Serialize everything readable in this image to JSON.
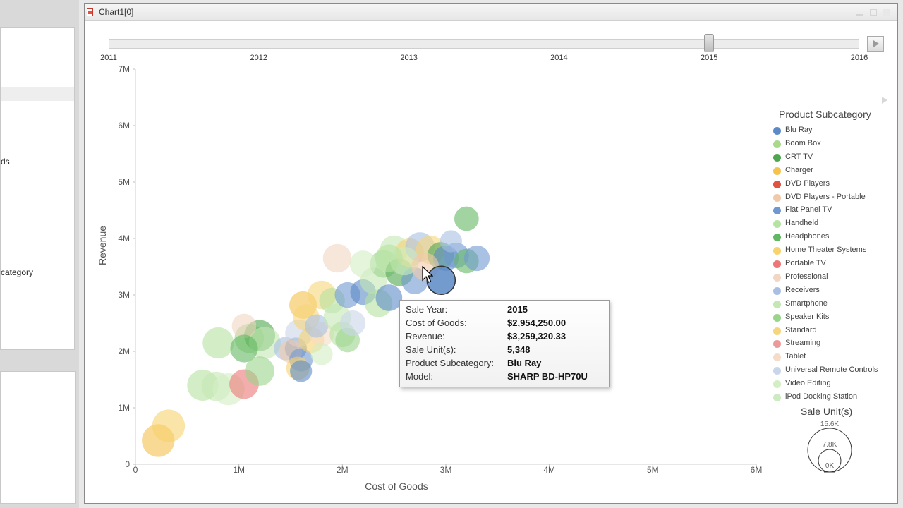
{
  "window": {
    "title": "Chart1[0]"
  },
  "left_panel": {
    "fragment_1": "ds",
    "fragment_2": "category"
  },
  "timeline": {
    "years": [
      "2011",
      "2012",
      "2013",
      "2014",
      "2015",
      "2016"
    ],
    "selected_year": 2015
  },
  "chart_data": {
    "type": "scatter",
    "xlabel": "Cost of Goods",
    "ylabel": "Revenue",
    "xlim": [
      0,
      6000000
    ],
    "ylim": [
      0,
      7000000
    ],
    "xticks": [
      "0",
      "1M",
      "2M",
      "3M",
      "4M",
      "5M",
      "6M"
    ],
    "yticks": [
      "0",
      "1M",
      "2M",
      "3M",
      "4M",
      "5M",
      "6M",
      "7M"
    ],
    "color_legend_title": "Product Subcategory",
    "size_legend_title": "Sale Unit(s)",
    "size_legend_values": [
      "15.6K",
      "7.8K",
      "0K"
    ],
    "categories": [
      {
        "name": "Blu Ray",
        "color": "#5b8ac6"
      },
      {
        "name": "Boom Box",
        "color": "#a9d98a"
      },
      {
        "name": "CRT TV",
        "color": "#4ea64e"
      },
      {
        "name": "Charger",
        "color": "#f5c24c"
      },
      {
        "name": "DVD Players",
        "color": "#e0533f"
      },
      {
        "name": "DVD Players - Portable",
        "color": "#f2c9a8"
      },
      {
        "name": "Flat Panel TV",
        "color": "#7097d0"
      },
      {
        "name": "Handheld",
        "color": "#b5e3a0"
      },
      {
        "name": "Headphones",
        "color": "#62b862"
      },
      {
        "name": "Home Theater Systems",
        "color": "#f7d26e"
      },
      {
        "name": "Portable TV",
        "color": "#ec7777"
      },
      {
        "name": "Professional",
        "color": "#f2d6c2"
      },
      {
        "name": "Receivers",
        "color": "#a8bfe3"
      },
      {
        "name": "Smartphone",
        "color": "#c4e8b4"
      },
      {
        "name": "Speaker Kits",
        "color": "#99d48b"
      },
      {
        "name": "Standard",
        "color": "#f7d57a"
      },
      {
        "name": "Streaming",
        "color": "#eb9a9a"
      },
      {
        "name": "Tablet",
        "color": "#f4dcc6"
      },
      {
        "name": "Universal Remote Controls",
        "color": "#c9d6ea"
      },
      {
        "name": "Video Editing",
        "color": "#d3eec5"
      },
      {
        "name": "iPod Docking Station",
        "color": "#cdebc0"
      }
    ],
    "points": [
      {
        "x": 220000,
        "y": 420000,
        "units": 8000,
        "cat": 3
      },
      {
        "x": 320000,
        "y": 680000,
        "units": 8000,
        "cat": 9
      },
      {
        "x": 650000,
        "y": 1400000,
        "units": 7000,
        "cat": 7
      },
      {
        "x": 780000,
        "y": 1380000,
        "units": 6000,
        "cat": 13
      },
      {
        "x": 900000,
        "y": 1330000,
        "units": 7500,
        "cat": 19
      },
      {
        "x": 1050000,
        "y": 1420000,
        "units": 6000,
        "cat": 10
      },
      {
        "x": 800000,
        "y": 2150000,
        "units": 7000,
        "cat": 7
      },
      {
        "x": 1100000,
        "y": 2230000,
        "units": 6000,
        "cat": 14
      },
      {
        "x": 1200000,
        "y": 2280000,
        "units": 7000,
        "cat": 2
      },
      {
        "x": 1250000,
        "y": 2150000,
        "units": 7500,
        "cat": 13
      },
      {
        "x": 1050000,
        "y": 2450000,
        "units": 3500,
        "cat": 11
      },
      {
        "x": 1050000,
        "y": 2050000,
        "units": 5000,
        "cat": 8
      },
      {
        "x": 1200000,
        "y": 1650000,
        "units": 6000,
        "cat": 14
      },
      {
        "x": 1450000,
        "y": 2050000,
        "units": 3000,
        "cat": 12
      },
      {
        "x": 1550000,
        "y": 2050000,
        "units": 2500,
        "cat": 0
      },
      {
        "x": 1580000,
        "y": 2320000,
        "units": 5000,
        "cat": 18
      },
      {
        "x": 1500000,
        "y": 2000000,
        "units": 3000,
        "cat": 5
      },
      {
        "x": 1600000,
        "y": 1850000,
        "units": 3000,
        "cat": 6
      },
      {
        "x": 1570000,
        "y": 1700000,
        "units": 3000,
        "cat": 9
      },
      {
        "x": 1620000,
        "y": 2820000,
        "units": 5000,
        "cat": 3
      },
      {
        "x": 1650000,
        "y": 2600000,
        "units": 4500,
        "cat": 15
      },
      {
        "x": 1700000,
        "y": 2200000,
        "units": 4000,
        "cat": 9
      },
      {
        "x": 1800000,
        "y": 2300000,
        "units": 3500,
        "cat": 17
      },
      {
        "x": 1750000,
        "y": 2450000,
        "units": 3000,
        "cat": 12
      },
      {
        "x": 1800000,
        "y": 3000000,
        "units": 5500,
        "cat": 15
      },
      {
        "x": 1900000,
        "y": 2900000,
        "units": 4000,
        "cat": 7
      },
      {
        "x": 1950000,
        "y": 2600000,
        "units": 5000,
        "cat": 13
      },
      {
        "x": 2000000,
        "y": 2300000,
        "units": 4000,
        "cat": 7
      },
      {
        "x": 2050000,
        "y": 2200000,
        "units": 3500,
        "cat": 14
      },
      {
        "x": 2100000,
        "y": 2500000,
        "units": 4000,
        "cat": 18
      },
      {
        "x": 1800000,
        "y": 1950000,
        "units": 2500,
        "cat": 19
      },
      {
        "x": 1600000,
        "y": 1650000,
        "units": 2500,
        "cat": 0
      },
      {
        "x": 1950000,
        "y": 3650000,
        "units": 5500,
        "cat": 11
      },
      {
        "x": 2050000,
        "y": 3000000,
        "units": 4000,
        "cat": 6
      },
      {
        "x": 2200000,
        "y": 3050000,
        "units": 4000,
        "cat": 0
      },
      {
        "x": 2300000,
        "y": 3250000,
        "units": 4500,
        "cat": 13
      },
      {
        "x": 2350000,
        "y": 2850000,
        "units": 5000,
        "cat": 7
      },
      {
        "x": 2450000,
        "y": 2950000,
        "units": 4500,
        "cat": 0
      },
      {
        "x": 2400000,
        "y": 3550000,
        "units": 5000,
        "cat": 14
      },
      {
        "x": 2500000,
        "y": 3800000,
        "units": 5500,
        "cat": 13
      },
      {
        "x": 2550000,
        "y": 3400000,
        "units": 5000,
        "cat": 2
      },
      {
        "x": 2650000,
        "y": 3750000,
        "units": 5500,
        "cat": 9
      },
      {
        "x": 2700000,
        "y": 3250000,
        "units": 4500,
        "cat": 6
      },
      {
        "x": 2750000,
        "y": 3850000,
        "units": 6000,
        "cat": 12
      },
      {
        "x": 2850000,
        "y": 3800000,
        "units": 5500,
        "cat": 15
      },
      {
        "x": 2950000,
        "y": 3700000,
        "units": 4500,
        "cat": 2
      },
      {
        "x": 3000000,
        "y": 3650000,
        "units": 4000,
        "cat": 0
      },
      {
        "x": 3100000,
        "y": 3700000,
        "units": 4000,
        "cat": 6
      },
      {
        "x": 3200000,
        "y": 3600000,
        "units": 3500,
        "cat": 8
      },
      {
        "x": 3300000,
        "y": 3650000,
        "units": 4000,
        "cat": 6
      },
      {
        "x": 3200000,
        "y": 4350000,
        "units": 3500,
        "cat": 8
      },
      {
        "x": 3050000,
        "y": 3950000,
        "units": 2500,
        "cat": 12
      },
      {
        "x": 2200000,
        "y": 3550000,
        "units": 4500,
        "cat": 19
      },
      {
        "x": 2600000,
        "y": 3600000,
        "units": 5500,
        "cat": 20
      },
      {
        "x": 2450000,
        "y": 3650000,
        "units": 5000,
        "cat": 7
      },
      {
        "x": 2800000,
        "y": 3500000,
        "units": 5000,
        "cat": 5
      },
      {
        "x": 2954250,
        "y": 3259320,
        "units": 5348,
        "cat": 0,
        "highlighted": true
      }
    ]
  },
  "tooltip": {
    "rows": [
      {
        "label": "Sale Year:",
        "value": "2015"
      },
      {
        "label": "Cost of Goods:",
        "value": "$2,954,250.00"
      },
      {
        "label": "Revenue:",
        "value": "$3,259,320.33"
      },
      {
        "label": "Sale Unit(s):",
        "value": "5,348"
      },
      {
        "label": "Product Subcategory:",
        "value": "Blu Ray"
      },
      {
        "label": "Model:",
        "value": "SHARP BD-HP70U"
      }
    ]
  }
}
